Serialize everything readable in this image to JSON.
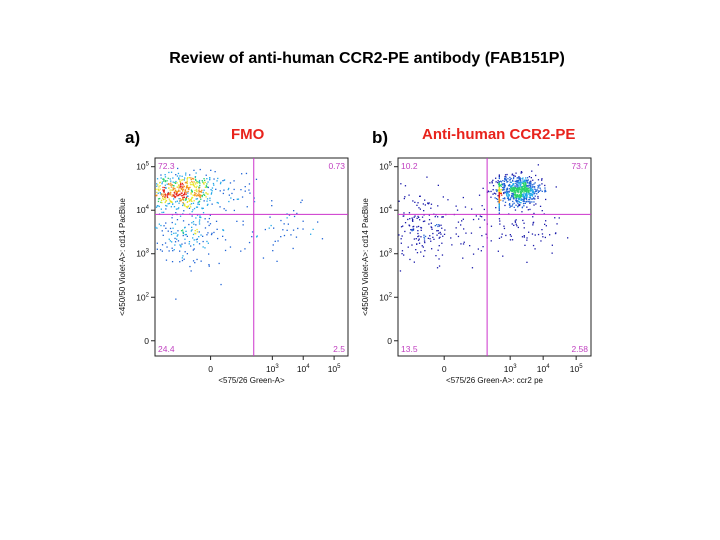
{
  "title": "Review of anti-human CCR2-PE antibody (FAB151P)",
  "chart_data": [
    {
      "type": "scatter",
      "panel_label": "a)",
      "title": "FMO",
      "xlabel": "<575/26 Green-A>",
      "ylabel": "<450/50 Violet-A>: cd14 PacBlue",
      "x_scale": "biexponential",
      "y_scale": "biexponential",
      "x_ticks": [
        {
          "base": "0",
          "exp": ""
        },
        {
          "base": "10",
          "exp": "3"
        },
        {
          "base": "10",
          "exp": "4"
        },
        {
          "base": "10",
          "exp": "5"
        }
      ],
      "y_ticks": [
        {
          "base": "0",
          "exp": ""
        },
        {
          "base": "10",
          "exp": "2"
        },
        {
          "base": "10",
          "exp": "3"
        },
        {
          "base": "10",
          "exp": "4"
        },
        {
          "base": "10",
          "exp": "5"
        }
      ],
      "gate_x": 250,
      "gate_y": 8000,
      "quadrants": {
        "upper_left": "72.3",
        "upper_right": "0.73",
        "lower_left": "24.4",
        "lower_right": "2.5"
      },
      "populations": [
        {
          "x": -250,
          "y": 28000,
          "sx": 180,
          "sy": 0.16,
          "n": 560
        },
        {
          "x": -200,
          "y": 3000,
          "sx": 170,
          "sy": 0.3,
          "n": 200
        },
        {
          "x": 3000,
          "y": 3500,
          "sx": 0.5,
          "sy": 0.22,
          "n": 40
        }
      ]
    },
    {
      "type": "scatter",
      "panel_label": "b)",
      "title": "Anti-human CCR2-PE",
      "xlabel": "<575/26 Green-A>: ccr2 pe",
      "ylabel": "<450/50 Violet-A>: cd14 PacBlue",
      "x_scale": "biexponential",
      "y_scale": "biexponential",
      "x_ticks": [
        {
          "base": "0",
          "exp": ""
        },
        {
          "base": "10",
          "exp": "3"
        },
        {
          "base": "10",
          "exp": "4"
        },
        {
          "base": "10",
          "exp": "5"
        }
      ],
      "y_ticks": [
        {
          "base": "0",
          "exp": ""
        },
        {
          "base": "10",
          "exp": "2"
        },
        {
          "base": "10",
          "exp": "3"
        },
        {
          "base": "10",
          "exp": "4"
        },
        {
          "base": "10",
          "exp": "5"
        }
      ],
      "gate_x": 200,
      "gate_y": 8000,
      "quadrants": {
        "upper_left": "10.2",
        "upper_right": "73.7",
        "lower_left": "13.5",
        "lower_right": "2.58"
      },
      "populations": [
        {
          "x": 1800,
          "y": 30000,
          "sx": 0.35,
          "sy": 0.13,
          "n": 620
        },
        {
          "x": 450,
          "y": 22000,
          "sx": 0.32,
          "sy": 0.14,
          "n": 160
        },
        {
          "x": -150,
          "y": 4500,
          "sx": 160,
          "sy": 0.3,
          "n": 220
        },
        {
          "x": 2500,
          "y": 3800,
          "sx": 0.6,
          "sy": 0.25,
          "n": 70
        }
      ]
    }
  ]
}
